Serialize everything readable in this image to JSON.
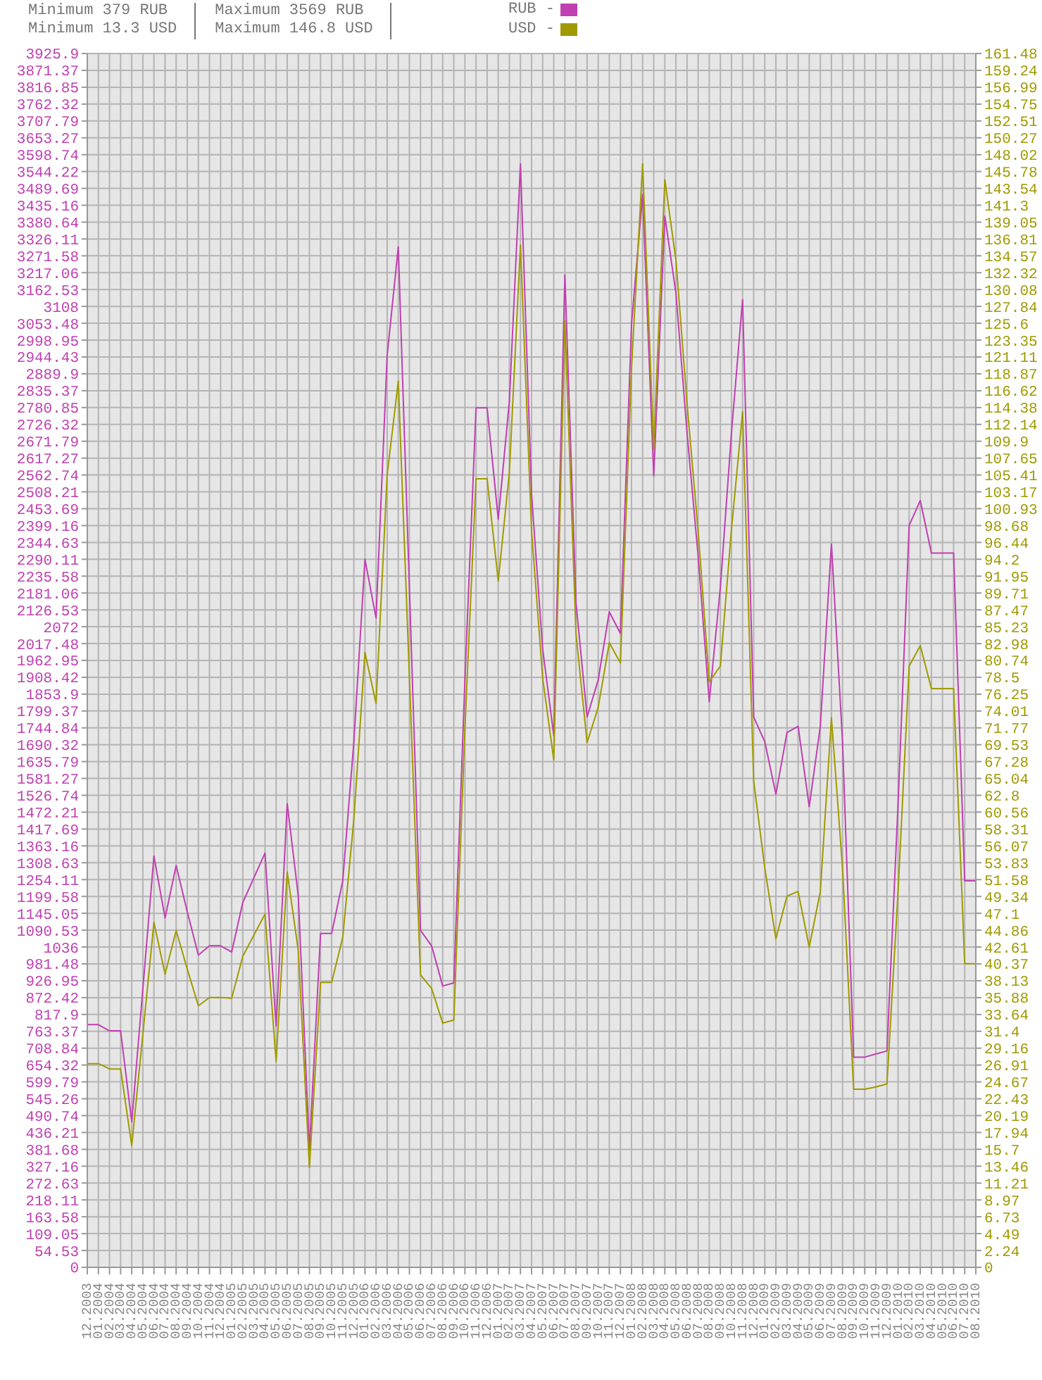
{
  "chart_data": {
    "type": "line",
    "annotations": [
      "Minimum 379 RUB",
      "Minimum 13.3 USD",
      "Maximum 3569 RUB",
      "Maximum 146.8 USD"
    ],
    "categories": [
      "12.2003",
      "01.2004",
      "02.2004",
      "03.2004",
      "04.2004",
      "05.2004",
      "06.2004",
      "07.2004",
      "08.2004",
      "09.2004",
      "10.2004",
      "11.2004",
      "12.2004",
      "01.2005",
      "02.2005",
      "03.2005",
      "04.2005",
      "05.2005",
      "06.2005",
      "07.2005",
      "08.2005",
      "09.2005",
      "10.2005",
      "11.2005",
      "12.2005",
      "01.2006",
      "02.2006",
      "03.2006",
      "04.2006",
      "05.2006",
      "06.2006",
      "07.2006",
      "08.2006",
      "09.2006",
      "10.2006",
      "11.2006",
      "12.2006",
      "01.2007",
      "02.2007",
      "03.2007",
      "04.2007",
      "05.2007",
      "06.2007",
      "07.2007",
      "08.2007",
      "09.2007",
      "10.2007",
      "11.2007",
      "12.2007",
      "01.2008",
      "02.2008",
      "03.2008",
      "04.2008",
      "05.2008",
      "06.2008",
      "07.2008",
      "08.2008",
      "09.2008",
      "10.2008",
      "11.2008",
      "12.2008",
      "01.2009",
      "02.2009",
      "03.2009",
      "04.2009",
      "05.2009",
      "06.2009",
      "07.2009",
      "08.2009",
      "09.2009",
      "10.2009",
      "11.2009",
      "12.2009",
      "01.2010",
      "02.2010",
      "03.2010",
      "04.2010",
      "05.2010",
      "06.2010",
      "07.2010",
      "08.2010"
    ],
    "series": [
      {
        "name": "RUB -",
        "color": "#c040b0",
        "values": [
          785,
          785,
          765,
          765,
          470,
          900,
          1330,
          1130,
          1300,
          1150,
          1010,
          1040,
          1040,
          1020,
          1180,
          1260,
          1340,
          780,
          1500,
          1200,
          379,
          1080,
          1080,
          1250,
          1700,
          2290,
          2100,
          2950,
          3300,
          2200,
          1090,
          1040,
          910,
          920,
          1900,
          2780,
          2780,
          2420,
          2800,
          3569,
          2500,
          2000,
          1720,
          3210,
          2150,
          1780,
          1900,
          2120,
          2050,
          3050,
          3470,
          2560,
          3400,
          3150,
          2700,
          2300,
          1830,
          2200,
          2700,
          3130,
          1780,
          1700,
          1530,
          1730,
          1750,
          1490,
          1750,
          2340,
          1700,
          680,
          680,
          690,
          700,
          1500,
          2400,
          2480,
          2310,
          2310,
          2310,
          1250,
          1250
        ]
      },
      {
        "name": "USD -",
        "color": "#a09a00",
        "axis": "y2",
        "values": [
          27.1,
          27.1,
          26.4,
          26.4,
          16.2,
          31,
          45.9,
          39,
          44.8,
          39.7,
          34.8,
          35.9,
          35.9,
          35.8,
          41.4,
          44.2,
          47,
          27.4,
          52.6,
          42.1,
          13.3,
          37.9,
          37.9,
          43.9,
          59.6,
          81.8,
          75,
          105.4,
          117.9,
          78.6,
          38.9,
          37.1,
          32.5,
          32.9,
          71.7,
          104.9,
          104.9,
          91.3,
          105.7,
          136,
          98,
          78.4,
          67.5,
          125.9,
          84.3,
          69.8,
          74.5,
          83.1,
          80.4,
          119.6,
          146.8,
          108.9,
          144.7,
          134,
          114.9,
          97.9,
          77.9,
          80,
          98.2,
          113.8,
          64.7,
          53.1,
          43.7,
          49.4,
          50,
          42.6,
          50,
          73.1,
          53.1,
          23.7,
          23.7,
          24,
          24.4,
          50,
          80,
          82.7,
          77,
          77,
          77,
          40.4,
          40.4
        ]
      }
    ],
    "ylim": [
      0,
      3925.9
    ],
    "yticks": [
      0,
      54.53,
      109.05,
      163.58,
      218.11,
      272.63,
      327.16,
      381.68,
      436.21,
      490.74,
      545.26,
      599.79,
      654.32,
      708.84,
      763.37,
      817.9,
      872.42,
      926.95,
      981.48,
      1036,
      1090.53,
      1145.05,
      1199.58,
      1254.11,
      1308.63,
      1363.16,
      1417.69,
      1472.21,
      1526.74,
      1581.27,
      1635.79,
      1690.32,
      1744.84,
      1799.37,
      1853.9,
      1908.42,
      1962.95,
      2017.48,
      2072,
      2126.53,
      2181.06,
      2235.58,
      2290.11,
      2344.63,
      2399.16,
      2453.69,
      2508.21,
      2562.74,
      2617.27,
      2671.79,
      2726.32,
      2780.85,
      2835.37,
      2889.9,
      2944.43,
      2998.95,
      3053.48,
      3108,
      3162.53,
      3217.06,
      3271.58,
      3326.11,
      3380.64,
      3435.16,
      3489.69,
      3544.22,
      3598.74,
      3653.27,
      3707.79,
      3762.32,
      3816.85,
      3871.37,
      3925.9
    ],
    "y2lim": [
      0,
      161.48
    ],
    "y2ticks": [
      0,
      2.24,
      4.49,
      6.73,
      8.97,
      11.21,
      13.46,
      15.7,
      17.94,
      20.19,
      22.43,
      24.67,
      26.91,
      29.16,
      31.4,
      33.64,
      35.88,
      38.13,
      40.37,
      42.61,
      44.86,
      47.1,
      49.34,
      51.58,
      53.83,
      56.07,
      58.31,
      60.56,
      62.8,
      65.04,
      67.28,
      69.53,
      71.77,
      74.01,
      76.25,
      78.5,
      80.74,
      82.98,
      85.23,
      87.47,
      89.71,
      91.95,
      94.2,
      96.44,
      98.68,
      100.93,
      103.17,
      105.41,
      107.65,
      109.9,
      112.14,
      114.38,
      116.62,
      118.87,
      121.11,
      123.35,
      125.6,
      127.84,
      130.08,
      132.32,
      134.57,
      136.81,
      139.05,
      141.3,
      143.54,
      145.78,
      148.02,
      150.27,
      152.51,
      154.75,
      156.99,
      159.24,
      161.48
    ],
    "grid": true,
    "legend": "top left"
  }
}
